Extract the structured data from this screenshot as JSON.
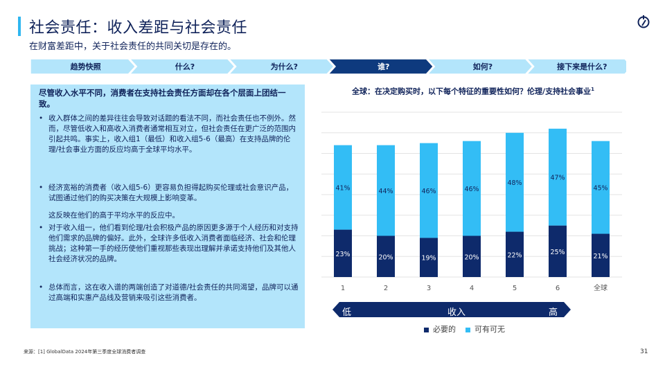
{
  "header": {
    "title": "社会责任：收入差距与社会责任",
    "subtitle": "在财富差距中，关于社会责任的共同关切是存在的。"
  },
  "nav": {
    "tabs": [
      {
        "label": "趋势快照",
        "active": false
      },
      {
        "label": "什么?",
        "active": false
      },
      {
        "label": "为什么?",
        "active": false
      },
      {
        "label": "谁?",
        "active": true
      },
      {
        "label": "如何?",
        "active": false
      },
      {
        "label": "接下来是什么?",
        "active": false
      }
    ]
  },
  "left_panel": {
    "heading": "尽管收入水平不同，消费者在支持社会责任方面却在各个层面上团结一致。",
    "bullets": [
      "收入群体之间的差异往往会导致对话题的看法不同，而社会责任也不例外。然而，尽管低收入和高收入消费者通常相互对立，但社会责任在更广泛的范围内引起共鸣。事实上，收入组1（最低）和收入组5-6（最高）在支持品牌的伦理/社会事业方面的反应均高于全球平均水平。",
      "经济宽裕的消费者（收入组5-6）更容易负担得起购买伦理或社会意识产品，试图通过他们的购买决策在大规模上影响变革。",
      "对于收入组一，他们看到伦理/社会积极产品的原因更多源于个人经历和对支持他们需求的品牌的偏好。此外，全球许多低收入消费者面临经济、社会和伦理挑战；这种第一手的经历使他们重视那些表现出理解并承诺支持他们及其他人社会经济状况的品牌。",
      "总体而言，这在收入谱的两端创造了对道德/社会责任的共同渴望，品牌可以通过高端和实惠产品线及营销来吸引这些消费者。"
    ],
    "plain_note": "这反映在他们的高于平均水平的反应中。",
    "bullet_symbol": "•"
  },
  "chart_data": {
    "type": "bar",
    "stacked": true,
    "title": "全球：在决定购买时，以下每个特征的重要性如何？伦理/支持社会事业",
    "title_footnote": "1",
    "categories": [
      "1",
      "2",
      "3",
      "4",
      "5",
      "6",
      "全球"
    ],
    "series": [
      {
        "name": "必要的",
        "values": [
          23,
          20,
          19,
          20,
          22,
          25,
          21
        ],
        "color": "#0e2a6b"
      },
      {
        "name": "可有可无",
        "values": [
          41,
          44,
          46,
          46,
          48,
          47,
          45
        ],
        "color": "#33bdf5"
      }
    ],
    "value_suffix": "%",
    "ylim": [
      0,
      80
    ],
    "grid": true,
    "legend": "bottom"
  },
  "income_arrow": {
    "low": "低",
    "label": "收入",
    "high": "高",
    "color": "#0e2a6b"
  },
  "footer": {
    "source": "来源：[1] GlobalData 2024年第三季度全球消费者调查",
    "page": "31"
  },
  "colors": {
    "accent": "#2fb6f0",
    "navy": "#10235a",
    "nav_inactive": "#b3e5fb",
    "nav_active": "#0e3a7e",
    "panel_bg": "#b3e5fb"
  }
}
